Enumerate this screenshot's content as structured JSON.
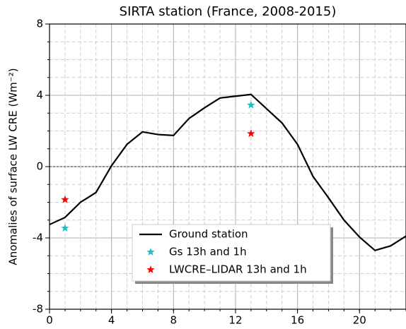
{
  "chart_data": {
    "type": "line",
    "title": "SIRTA station (France, 2008-2015)",
    "y_label": "Anomalies of surface LW CRE (Wm⁻²)",
    "xlim": [
      0,
      23
    ],
    "ylim": [
      -8,
      8
    ],
    "xticks": [
      0,
      4,
      8,
      12,
      16,
      20
    ],
    "yticks": [
      -8,
      -4,
      0,
      4,
      8
    ],
    "grid": true,
    "zero_line": true,
    "legend": "lower center",
    "series": [
      {
        "name": "Ground station",
        "color": "#000000",
        "style": "line",
        "x": [
          0,
          1,
          2,
          3,
          4,
          5,
          6,
          7,
          8,
          9,
          10,
          11,
          12,
          13,
          14,
          15,
          16,
          17,
          18,
          19,
          20,
          21,
          22,
          23
        ],
        "values": [
          -3.25,
          -2.85,
          -2.0,
          -1.45,
          0.05,
          1.25,
          1.95,
          1.8,
          1.75,
          2.7,
          3.3,
          3.85,
          3.95,
          4.05,
          3.25,
          2.45,
          1.25,
          -0.55,
          -1.75,
          -3.0,
          -3.95,
          -4.7,
          -4.45,
          -3.9
        ]
      },
      {
        "name": "Gs 13h and 1h",
        "color": "#17c2c8",
        "style": "star",
        "x": [
          1,
          13
        ],
        "values": [
          -3.45,
          3.45
        ]
      },
      {
        "name": "LWCRE–LIDAR 13h and 1h",
        "color": "#ff0000",
        "style": "star",
        "x": [
          1,
          13
        ],
        "values": [
          -1.85,
          1.85
        ]
      }
    ]
  }
}
